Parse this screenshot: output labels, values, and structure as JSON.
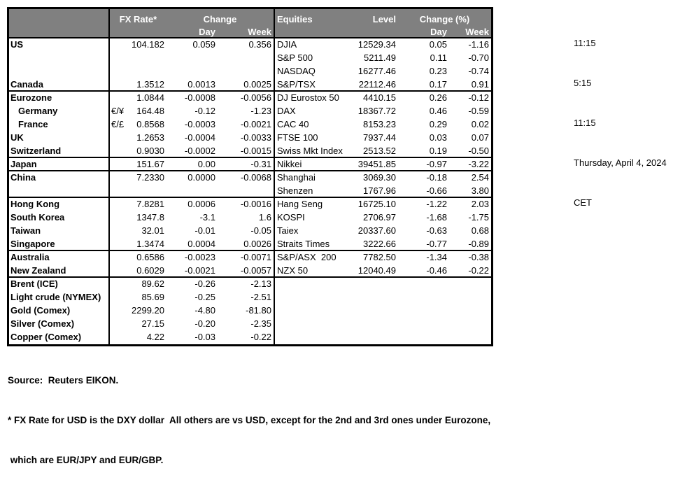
{
  "colors": {
    "header_bg": "#808080",
    "header_text": "#FFFFFF",
    "body_text": "#000000",
    "background": "#FFFFFF",
    "border": "#000000"
  },
  "table": {
    "header": {
      "fx": {
        "rate_label": "FX Rate*",
        "change_label": "Change",
        "day_label": "Day",
        "week_label": "Week"
      },
      "eq": {
        "name_label": "Equities",
        "level_label": "Level",
        "change_label": "Change (%)",
        "day_label": "Day",
        "week_label": "Week"
      }
    },
    "rows": [
      {
        "fx": {
          "name": "US",
          "pair": "",
          "rate": "104.182",
          "day": "0.059",
          "week": "0.356"
        },
        "eq": {
          "name": "DJIA",
          "level": "12529.34",
          "day": "0.05",
          "week": "-1.16"
        },
        "sep": false
      },
      {
        "fx": null,
        "eq": {
          "name": "S&P 500",
          "level": "5211.49",
          "day": "0.11",
          "week": "-0.70"
        },
        "sep": false
      },
      {
        "fx": null,
        "eq": {
          "name": "NASDAQ",
          "level": "16277.46",
          "day": "0.23",
          "week": "-0.74"
        },
        "sep": false
      },
      {
        "fx": {
          "name": "Canada",
          "pair": "",
          "rate": "1.3512",
          "day": "0.0013",
          "week": "0.0025"
        },
        "eq": {
          "name": "S&P/TSX",
          "level": "22112.46",
          "day": "0.17",
          "week": "0.91"
        },
        "sep": true
      },
      {
        "fx": {
          "name": "Eurozone",
          "pair": "",
          "rate": "1.0844",
          "day": "-0.0008",
          "week": "-0.0056"
        },
        "eq": {
          "name": "DJ Eurostox 50",
          "level": "4410.15",
          "day": "0.26",
          "week": "-0.12"
        },
        "sep": false
      },
      {
        "fx": {
          "name": "Germany",
          "indent": true,
          "pair": "€/¥",
          "rate": "164.48",
          "day": "-0.12",
          "week": "-1.23"
        },
        "eq": {
          "name": "DAX",
          "level": "18367.72",
          "day": "0.46",
          "week": "-0.59"
        },
        "sep": false
      },
      {
        "fx": {
          "name": "France",
          "indent": true,
          "pair": "€/£",
          "rate": "0.8568",
          "day": "-0.0003",
          "week": "-0.0021"
        },
        "eq": {
          "name": "CAC 40",
          "level": "8153.23",
          "day": "0.29",
          "week": "0.02"
        },
        "sep": false
      },
      {
        "fx": {
          "name": "UK",
          "pair": "",
          "rate": "1.2653",
          "day": "-0.0004",
          "week": "-0.0033"
        },
        "eq": {
          "name": "FTSE 100",
          "level": "7937.44",
          "day": "0.03",
          "week": "0.07"
        },
        "sep": false
      },
      {
        "fx": {
          "name": "Switzerland",
          "pair": "",
          "rate": "0.9030",
          "day": "-0.0002",
          "week": "-0.0015"
        },
        "eq": {
          "name": "Swiss Mkt Index",
          "level": "2513.52",
          "day": "0.19",
          "week": "-0.50"
        },
        "sep": true
      },
      {
        "fx": {
          "name": "Japan",
          "pair": "",
          "rate": "151.67",
          "day": "0.00",
          "week": "-0.31"
        },
        "eq": {
          "name": "Nikkei",
          "level": "39451.85",
          "day": "-0.97",
          "week": "-3.22"
        },
        "sep": true
      },
      {
        "fx": {
          "name": "China",
          "pair": "",
          "rate": "7.2330",
          "day": "0.0000",
          "week": "-0.0068"
        },
        "eq": {
          "name": "Shanghai",
          "level": "3069.30",
          "day": "-0.18",
          "week": "2.54"
        },
        "sep": false
      },
      {
        "fx": null,
        "eq": {
          "name": "Shenzen",
          "level": "1767.96",
          "day": "-0.66",
          "week": "3.80"
        },
        "sep": true
      },
      {
        "fx": {
          "name": "Hong Kong",
          "pair": "",
          "rate": "7.8281",
          "day": "0.0006",
          "week": "-0.0016"
        },
        "eq": {
          "name": "Hang Seng",
          "level": "16725.10",
          "day": "-1.22",
          "week": "2.03"
        },
        "sep": false
      },
      {
        "fx": {
          "name": "South Korea",
          "pair": "",
          "rate": "1347.8",
          "day": "-3.1",
          "week": "1.6"
        },
        "eq": {
          "name": "KOSPI",
          "level": "2706.97",
          "day": "-1.68",
          "week": "-1.75"
        },
        "sep": false
      },
      {
        "fx": {
          "name": "Taiwan",
          "pair": "",
          "rate": "32.01",
          "day": "-0.01",
          "week": "-0.05"
        },
        "eq": {
          "name": "Taiex",
          "level": "20337.60",
          "day": "-0.63",
          "week": "0.68"
        },
        "sep": false
      },
      {
        "fx": {
          "name": "Singapore",
          "pair": "",
          "rate": "1.3474",
          "day": "0.0004",
          "week": "0.0026"
        },
        "eq": {
          "name": "Straits Times",
          "level": "3222.66",
          "day": "-0.77",
          "week": "-0.89"
        },
        "sep": true
      },
      {
        "fx": {
          "name": "Australia",
          "pair": "",
          "rate": "0.6586",
          "day": "-0.0023",
          "week": "-0.0071"
        },
        "eq": {
          "name": "S&P/ASX  200",
          "level": "7782.50",
          "day": "-1.34",
          "week": "-0.38"
        },
        "sep": false
      },
      {
        "fx": {
          "name": "New Zealand",
          "pair": "",
          "rate": "0.6029",
          "day": "-0.0021",
          "week": "-0.0057"
        },
        "eq": {
          "name": "NZX 50",
          "level": "12040.49",
          "day": "-0.46",
          "week": "-0.22"
        },
        "sep": true
      },
      {
        "fx": {
          "name": "Brent (ICE)",
          "pair": "",
          "rate": "89.62",
          "day": "-0.26",
          "week": "-2.13"
        },
        "eq": null,
        "sep": false
      },
      {
        "fx": {
          "name": "Light crude (NYMEX)",
          "pair": "",
          "rate": "85.69",
          "day": "-0.25",
          "week": "-2.51"
        },
        "eq": null,
        "sep": false
      },
      {
        "fx": {
          "name": "Gold (Comex)",
          "pair": "",
          "rate": "2299.20",
          "day": "-4.80",
          "week": "-81.80"
        },
        "eq": null,
        "sep": false
      },
      {
        "fx": {
          "name": "Silver (Comex)",
          "pair": "",
          "rate": "27.15",
          "day": "-0.20",
          "week": "-2.35"
        },
        "eq": null,
        "sep": false
      },
      {
        "fx": {
          "name": "Copper (Comex)",
          "pair": "",
          "rate": "4.22",
          "day": "-0.03",
          "week": "-0.22"
        },
        "eq": null,
        "sep": false
      }
    ]
  },
  "info": {
    "times": [
      "11:15",
      "5:15",
      "11:15"
    ],
    "date": "Thursday, April 4, 2024",
    "timezone": "CET"
  },
  "footer": {
    "source": "Source:  Reuters EIKON.",
    "note1": "* FX Rate for USD is the DXY dollar  All others are vs USD, except for the 2nd and 3rd ones under Eurozone,",
    "note2": " which are EUR/JPY and EUR/GBP."
  }
}
